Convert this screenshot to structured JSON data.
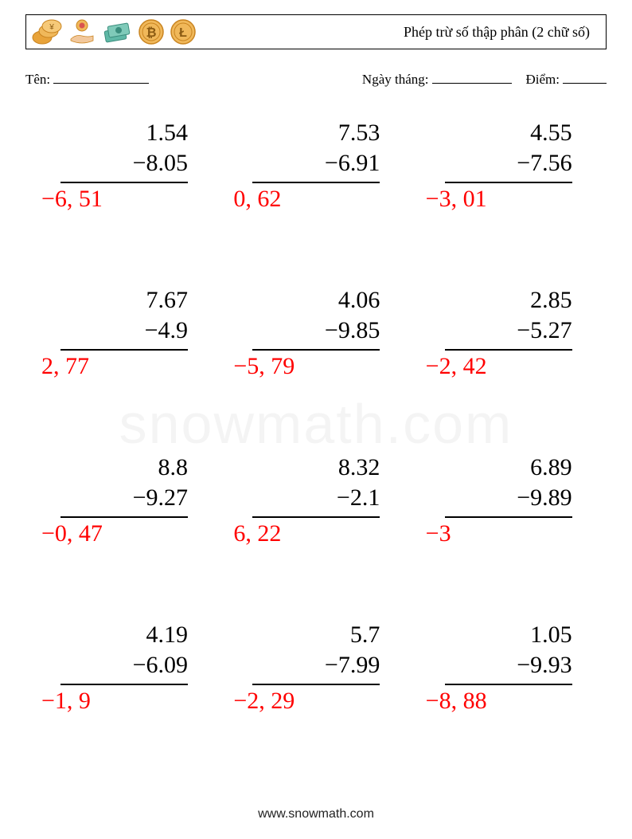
{
  "header": {
    "title": "Phép trừ số thập phân (2 chữ số)"
  },
  "info": {
    "name_label": "Tên:",
    "date_label": "Ngày tháng:",
    "score_label": "Điểm:"
  },
  "style": {
    "operand_color": "#000000",
    "operand_fontsize": 30,
    "answer_color": "#ff0000",
    "answer_fontsize": 30,
    "rule_width": 160,
    "grid_cols": 3,
    "grid_rows": 4
  },
  "problems": [
    {
      "minuend": "1.54",
      "subtrahend": "8.05",
      "answer": "−6, 51"
    },
    {
      "minuend": "7.53",
      "subtrahend": "6.91",
      "answer": "0, 62"
    },
    {
      "minuend": "4.55",
      "subtrahend": "7.56",
      "answer": "−3, 01"
    },
    {
      "minuend": "7.67",
      "subtrahend": "4.9",
      "answer": "2, 77"
    },
    {
      "minuend": "4.06",
      "subtrahend": "9.85",
      "answer": "−5, 79"
    },
    {
      "minuend": "2.85",
      "subtrahend": "5.27",
      "answer": "−2, 42"
    },
    {
      "minuend": "8.8",
      "subtrahend": "9.27",
      "answer": "−0, 47"
    },
    {
      "minuend": "8.32",
      "subtrahend": "2.1",
      "answer": "6, 22"
    },
    {
      "minuend": "6.89",
      "subtrahend": "9.89",
      "answer": "−3"
    },
    {
      "minuend": "4.19",
      "subtrahend": "6.09",
      "answer": "−1, 9"
    },
    {
      "minuend": "5.7",
      "subtrahend": "7.99",
      "answer": "−2, 29"
    },
    {
      "minuend": "1.05",
      "subtrahend": "9.93",
      "answer": "−8, 88"
    }
  ],
  "footer": {
    "text": "www.snowmath.com"
  },
  "watermark": "snowmath.com",
  "icons": {
    "colors": {
      "gold": "#e8a33a",
      "gold_dark": "#c98420",
      "teal": "#5fb8a6",
      "skin": "#f2c89c",
      "red": "#d9534f",
      "yen": "¥",
      "btc": "₿",
      "ltc": "Ł"
    }
  }
}
